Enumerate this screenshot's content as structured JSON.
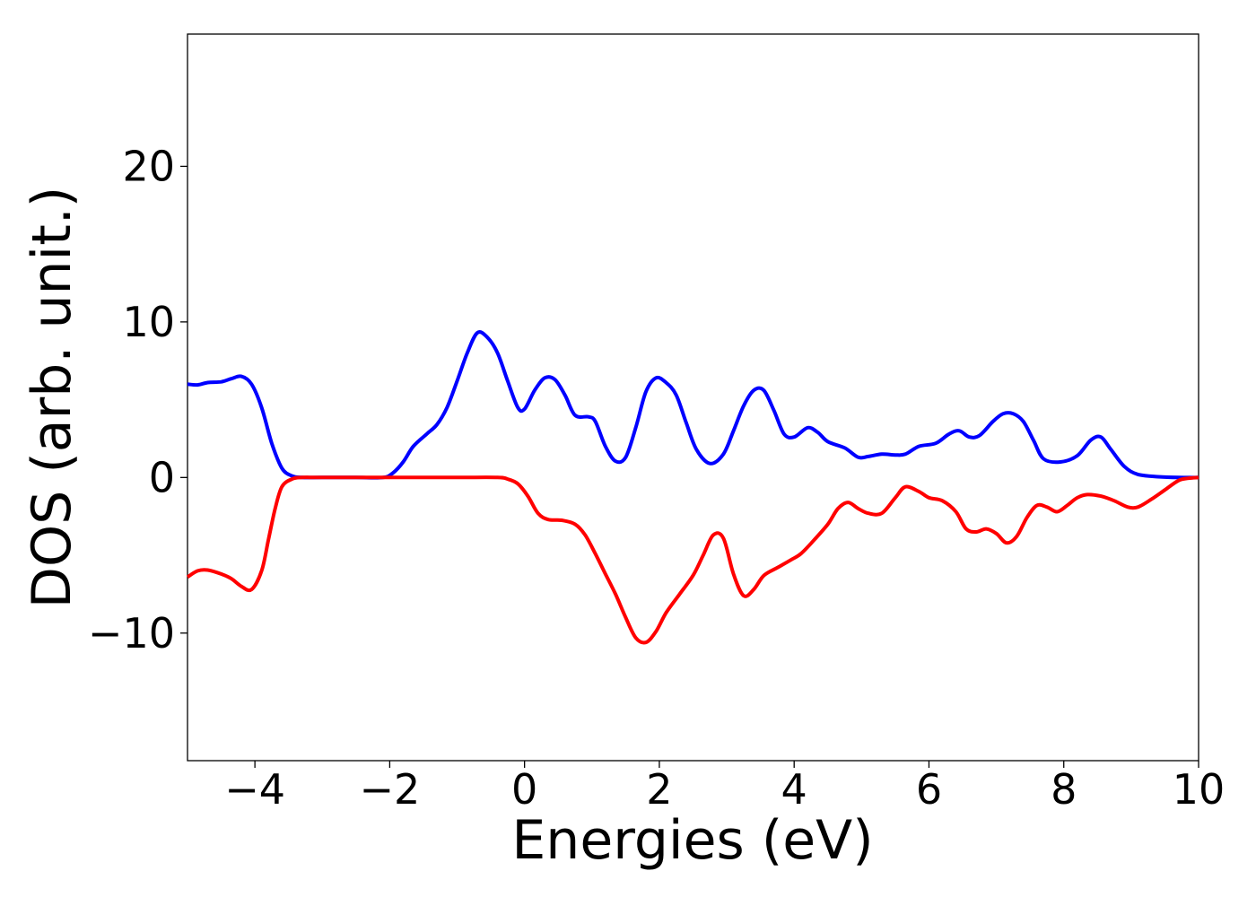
{
  "chart_data": {
    "type": "line",
    "title": "",
    "xlabel": "Energies (eV)",
    "ylabel": "DOS (arb. unit.)",
    "xlim": [
      -5,
      10
    ],
    "ylim": [
      -18.2,
      28.5
    ],
    "xticks": [
      -4,
      -2,
      0,
      2,
      4,
      6,
      8,
      10
    ],
    "yticks": [
      -10,
      0,
      10,
      20
    ],
    "grid": false,
    "series": [
      {
        "color": "#0000ff",
        "points": [
          [
            -5.0,
            6.0
          ],
          [
            -4.85,
            5.95
          ],
          [
            -4.7,
            6.1
          ],
          [
            -4.5,
            6.15
          ],
          [
            -4.35,
            6.35
          ],
          [
            -4.2,
            6.5
          ],
          [
            -4.05,
            6.0
          ],
          [
            -3.9,
            4.5
          ],
          [
            -3.75,
            2.2
          ],
          [
            -3.6,
            0.6
          ],
          [
            -3.45,
            0.1
          ],
          [
            -3.3,
            0.0
          ],
          [
            -3.0,
            0.0
          ],
          [
            -2.5,
            0.0
          ],
          [
            -2.1,
            0.0
          ],
          [
            -1.95,
            0.3
          ],
          [
            -1.8,
            1.0
          ],
          [
            -1.65,
            2.0
          ],
          [
            -1.45,
            2.8
          ],
          [
            -1.3,
            3.4
          ],
          [
            -1.15,
            4.5
          ],
          [
            -1.0,
            6.2
          ],
          [
            -0.85,
            8.0
          ],
          [
            -0.7,
            9.3
          ],
          [
            -0.55,
            9.0
          ],
          [
            -0.4,
            8.0
          ],
          [
            -0.25,
            6.2
          ],
          [
            -0.1,
            4.5
          ],
          [
            0.0,
            4.4
          ],
          [
            0.15,
            5.6
          ],
          [
            0.3,
            6.4
          ],
          [
            0.45,
            6.3
          ],
          [
            0.6,
            5.3
          ],
          [
            0.75,
            4.0
          ],
          [
            0.95,
            3.9
          ],
          [
            1.05,
            3.6
          ],
          [
            1.2,
            2.0
          ],
          [
            1.35,
            1.05
          ],
          [
            1.5,
            1.3
          ],
          [
            1.65,
            3.2
          ],
          [
            1.8,
            5.5
          ],
          [
            1.95,
            6.4
          ],
          [
            2.1,
            6.1
          ],
          [
            2.25,
            5.3
          ],
          [
            2.4,
            3.5
          ],
          [
            2.55,
            1.8
          ],
          [
            2.75,
            0.9
          ],
          [
            2.95,
            1.5
          ],
          [
            3.1,
            3.0
          ],
          [
            3.25,
            4.6
          ],
          [
            3.4,
            5.6
          ],
          [
            3.55,
            5.6
          ],
          [
            3.7,
            4.3
          ],
          [
            3.85,
            2.8
          ],
          [
            4.0,
            2.6
          ],
          [
            4.2,
            3.2
          ],
          [
            4.35,
            2.9
          ],
          [
            4.5,
            2.3
          ],
          [
            4.75,
            1.9
          ],
          [
            4.95,
            1.3
          ],
          [
            5.1,
            1.35
          ],
          [
            5.3,
            1.5
          ],
          [
            5.5,
            1.45
          ],
          [
            5.65,
            1.5
          ],
          [
            5.85,
            2.0
          ],
          [
            6.1,
            2.2
          ],
          [
            6.3,
            2.8
          ],
          [
            6.45,
            3.0
          ],
          [
            6.6,
            2.6
          ],
          [
            6.75,
            2.7
          ],
          [
            6.95,
            3.6
          ],
          [
            7.1,
            4.1
          ],
          [
            7.25,
            4.1
          ],
          [
            7.4,
            3.6
          ],
          [
            7.55,
            2.4
          ],
          [
            7.7,
            1.2
          ],
          [
            7.95,
            1.0
          ],
          [
            8.2,
            1.4
          ],
          [
            8.4,
            2.4
          ],
          [
            8.55,
            2.6
          ],
          [
            8.7,
            1.8
          ],
          [
            8.9,
            0.7
          ],
          [
            9.1,
            0.2
          ],
          [
            9.4,
            0.05
          ],
          [
            9.7,
            0.0
          ],
          [
            10.0,
            0.0
          ]
        ]
      },
      {
        "color": "#ff0000",
        "points": [
          [
            -5.0,
            -6.4
          ],
          [
            -4.85,
            -6.0
          ],
          [
            -4.7,
            -5.95
          ],
          [
            -4.5,
            -6.2
          ],
          [
            -4.35,
            -6.5
          ],
          [
            -4.2,
            -7.0
          ],
          [
            -4.05,
            -7.2
          ],
          [
            -3.9,
            -6.0
          ],
          [
            -3.8,
            -4.0
          ],
          [
            -3.7,
            -2.0
          ],
          [
            -3.6,
            -0.6
          ],
          [
            -3.45,
            -0.1
          ],
          [
            -3.3,
            0.0
          ],
          [
            -3.0,
            0.0
          ],
          [
            -2.0,
            0.0
          ],
          [
            -1.0,
            0.0
          ],
          [
            -0.4,
            0.0
          ],
          [
            -0.25,
            -0.1
          ],
          [
            -0.1,
            -0.4
          ],
          [
            0.05,
            -1.2
          ],
          [
            0.2,
            -2.3
          ],
          [
            0.35,
            -2.7
          ],
          [
            0.55,
            -2.75
          ],
          [
            0.75,
            -3.0
          ],
          [
            0.9,
            -3.7
          ],
          [
            1.05,
            -4.9
          ],
          [
            1.2,
            -6.2
          ],
          [
            1.35,
            -7.5
          ],
          [
            1.5,
            -9.0
          ],
          [
            1.65,
            -10.3
          ],
          [
            1.8,
            -10.6
          ],
          [
            1.95,
            -9.9
          ],
          [
            2.1,
            -8.7
          ],
          [
            2.3,
            -7.5
          ],
          [
            2.5,
            -6.3
          ],
          [
            2.65,
            -5.0
          ],
          [
            2.8,
            -3.7
          ],
          [
            2.95,
            -3.9
          ],
          [
            3.1,
            -6.2
          ],
          [
            3.25,
            -7.6
          ],
          [
            3.4,
            -7.2
          ],
          [
            3.55,
            -6.3
          ],
          [
            3.75,
            -5.8
          ],
          [
            3.95,
            -5.3
          ],
          [
            4.1,
            -4.9
          ],
          [
            4.3,
            -4.0
          ],
          [
            4.5,
            -3.0
          ],
          [
            4.65,
            -2.0
          ],
          [
            4.8,
            -1.6
          ],
          [
            4.95,
            -2.0
          ],
          [
            5.1,
            -2.3
          ],
          [
            5.3,
            -2.3
          ],
          [
            5.5,
            -1.3
          ],
          [
            5.65,
            -0.6
          ],
          [
            5.85,
            -0.9
          ],
          [
            6.0,
            -1.3
          ],
          [
            6.2,
            -1.5
          ],
          [
            6.4,
            -2.2
          ],
          [
            6.55,
            -3.3
          ],
          [
            6.7,
            -3.5
          ],
          [
            6.85,
            -3.3
          ],
          [
            7.0,
            -3.6
          ],
          [
            7.15,
            -4.2
          ],
          [
            7.3,
            -3.8
          ],
          [
            7.45,
            -2.6
          ],
          [
            7.6,
            -1.8
          ],
          [
            7.75,
            -1.9
          ],
          [
            7.9,
            -2.2
          ],
          [
            8.05,
            -1.8
          ],
          [
            8.2,
            -1.3
          ],
          [
            8.35,
            -1.1
          ],
          [
            8.55,
            -1.2
          ],
          [
            8.75,
            -1.5
          ],
          [
            8.95,
            -1.9
          ],
          [
            9.1,
            -1.9
          ],
          [
            9.3,
            -1.4
          ],
          [
            9.5,
            -0.8
          ],
          [
            9.7,
            -0.2
          ],
          [
            9.85,
            -0.05
          ],
          [
            10.0,
            0.0
          ]
        ]
      }
    ]
  }
}
